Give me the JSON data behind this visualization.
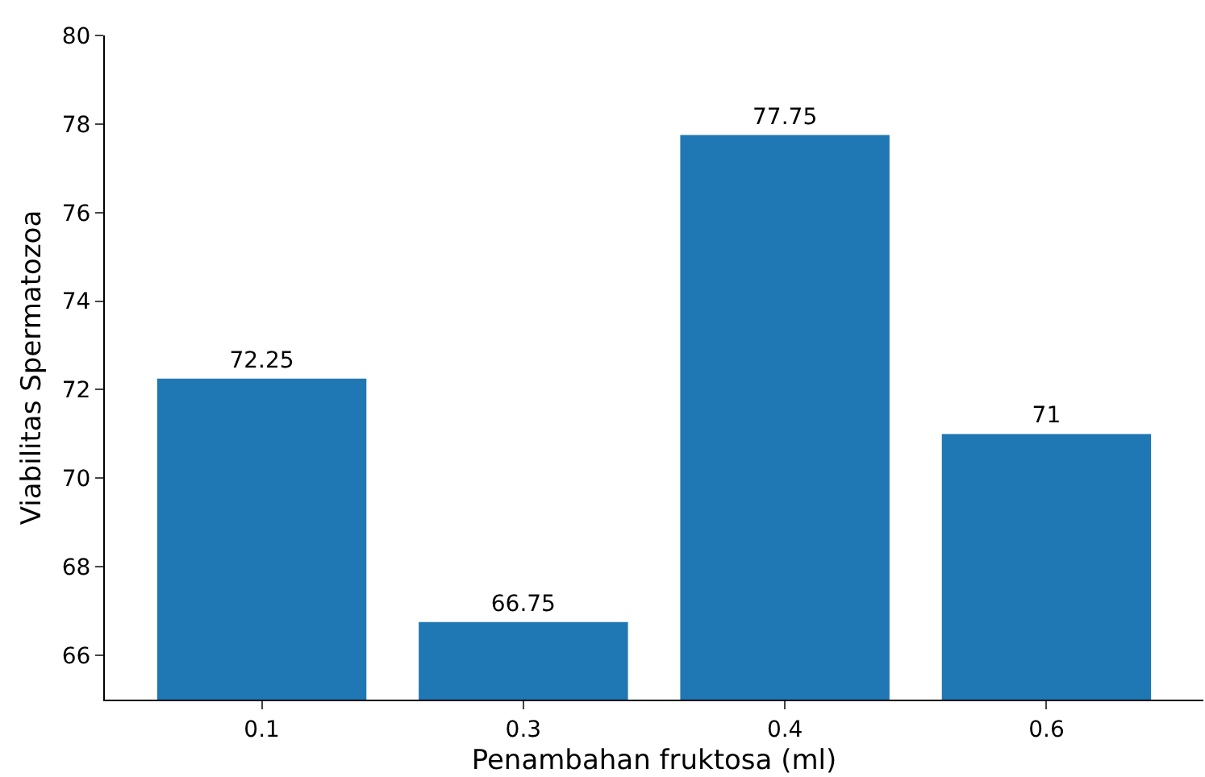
{
  "chart_data": {
    "type": "bar",
    "xlabel": "Penambahan fruktosa (ml)",
    "ylabel": "Viabilitas Spermatozoa",
    "categories": [
      "0.1",
      "0.3",
      "0.4",
      "0.6"
    ],
    "values": [
      72.25,
      66.75,
      77.75,
      71
    ],
    "color": "#1f77b4",
    "ylim": [
      65,
      80
    ],
    "yticks": [
      66,
      68,
      70,
      72,
      74,
      76,
      78,
      80
    ],
    "data_labels": true
  }
}
